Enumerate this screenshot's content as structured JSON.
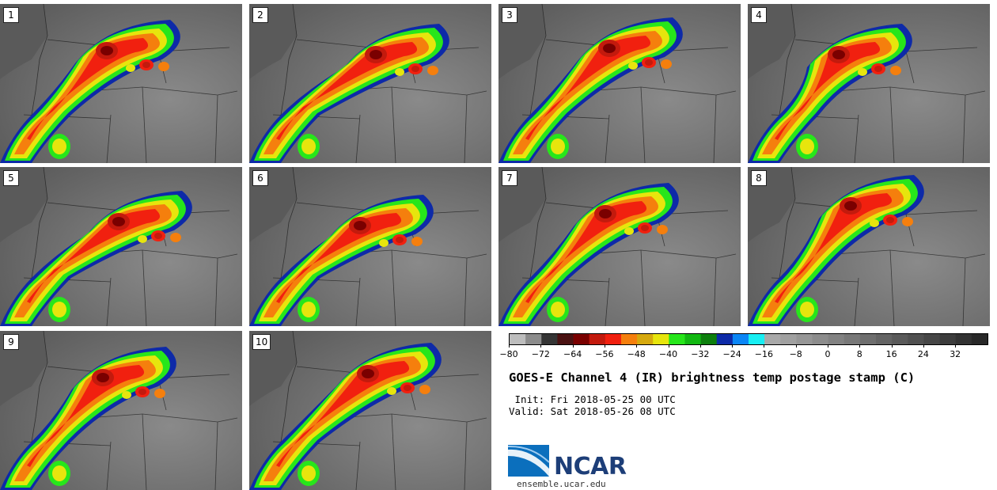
{
  "panels": [
    "1",
    "2",
    "3",
    "4",
    "5",
    "6",
    "7",
    "8",
    "9",
    "10"
  ],
  "colorbar": {
    "ticks": [
      "−80",
      "−72",
      "−64",
      "−56",
      "−48",
      "−40",
      "−32",
      "−24",
      "−16",
      "−8",
      "0",
      "8",
      "16",
      "24",
      "32"
    ],
    "colors": [
      "#bdbdbd",
      "#8c8c8c",
      "#353535",
      "#4a1212",
      "#7a0000",
      "#c31a0d",
      "#f1200f",
      "#f57f0d",
      "#d6a90e",
      "#e7e50d",
      "#27e61b",
      "#12b812",
      "#0d7f0d",
      "#0d2aa8",
      "#0b86f5",
      "#18eef2",
      "#a9a9a9",
      "#a0a0a0",
      "#969696",
      "#8c8c8c",
      "#828282",
      "#787878",
      "#6e6e6e",
      "#646464",
      "#5a5a5a",
      "#505050",
      "#464646",
      "#3c3c3c",
      "#323232",
      "#282828"
    ]
  },
  "title": "GOES-E Channel 4 (IR) brightness temp postage stamp (C)",
  "init": " Init: Fri 2018-05-25 00 UTC",
  "valid": "Valid: Sat 2018-05-26 08 UTC",
  "logo": {
    "text": "NCAR",
    "url": "ensemble.ucar.edu",
    "brand_color": "#1d3e78",
    "accent_color": "#0b6fbd"
  }
}
